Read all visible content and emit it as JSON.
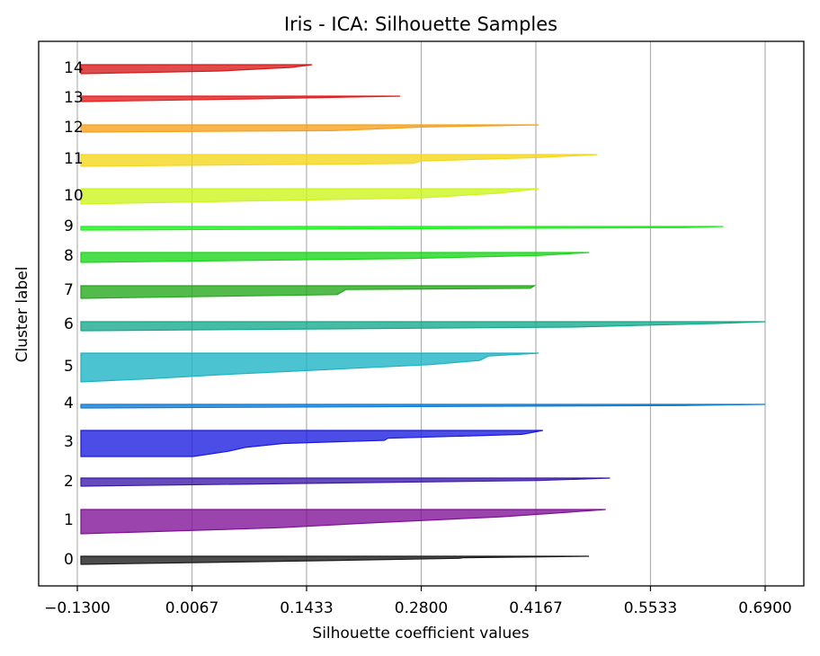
{
  "chart_data": {
    "type": "area",
    "title": "Iris - ICA: Silhouette Samples",
    "xlabel": "Silhouette coefficient values",
    "ylabel": "Cluster label",
    "xlim": [
      -0.13,
      0.69
    ],
    "xticks": [
      -0.13,
      0.0067,
      0.1433,
      0.28,
      0.4167,
      0.5533,
      0.69
    ],
    "xtick_labels": [
      "−0.1300",
      "0.0067",
      "0.1433",
      "0.2800",
      "0.4167",
      "0.5533",
      "0.6900"
    ],
    "grid": "vertical",
    "clusters": [
      {
        "label": "0",
        "color": "#1a1a1a",
        "profile": [
          [
            0.0,
            0.48
          ],
          [
            0.18,
            0.33
          ],
          [
            0.25,
            0.325
          ],
          [
            0.55,
            0.155
          ],
          [
            1.0,
            -0.126
          ]
        ]
      },
      {
        "label": "1",
        "color": "#800f96",
        "profile": [
          [
            0.0,
            0.5
          ],
          [
            0.1,
            0.46
          ],
          [
            0.3,
            0.375
          ],
          [
            0.55,
            0.22
          ],
          [
            0.75,
            0.11
          ],
          [
            1.0,
            -0.126
          ]
        ]
      },
      {
        "label": "2",
        "color": "#3b1aa6",
        "profile": [
          [
            0.0,
            0.505
          ],
          [
            0.3,
            0.42
          ],
          [
            1.0,
            -0.126
          ]
        ]
      },
      {
        "label": "3",
        "color": "#1a1ae0",
        "profile": [
          [
            0.0,
            0.425
          ],
          [
            0.15,
            0.4
          ],
          [
            0.3,
            0.24
          ],
          [
            0.38,
            0.236
          ],
          [
            0.5,
            0.115
          ],
          [
            0.65,
            0.07
          ],
          [
            0.8,
            0.05
          ],
          [
            1.0,
            0.008
          ]
        ]
      },
      {
        "label": "4",
        "color": "#0f7ad1",
        "profile": [
          [
            0.0,
            0.69
          ],
          [
            0.3,
            0.6
          ],
          [
            1.0,
            -0.126
          ]
        ]
      },
      {
        "label": "5",
        "color": "#1ab2c4",
        "profile": [
          [
            0.0,
            0.42
          ],
          [
            0.1,
            0.36
          ],
          [
            0.25,
            0.35
          ],
          [
            0.4,
            0.29
          ],
          [
            0.75,
            0.04
          ],
          [
            0.9,
            -0.05
          ],
          [
            1.0,
            -0.126
          ]
        ]
      },
      {
        "label": "6",
        "color": "#15a88a",
        "profile": [
          [
            0.0,
            0.69
          ],
          [
            0.2,
            0.63
          ],
          [
            0.6,
            0.46
          ],
          [
            1.0,
            -0.126
          ]
        ]
      },
      {
        "label": "7",
        "color": "#22a81a",
        "profile": [
          [
            0.0,
            0.415
          ],
          [
            0.2,
            0.41
          ],
          [
            0.3,
            0.19
          ],
          [
            0.7,
            0.18
          ],
          [
            1.0,
            -0.126
          ]
        ]
      },
      {
        "label": "8",
        "color": "#1ad61a",
        "profile": [
          [
            0.0,
            0.48
          ],
          [
            0.3,
            0.42
          ],
          [
            0.6,
            0.27
          ],
          [
            1.0,
            -0.126
          ]
        ]
      },
      {
        "label": "9",
        "color": "#1af01a",
        "profile": [
          [
            0.0,
            0.64
          ],
          [
            0.3,
            0.6
          ],
          [
            1.0,
            -0.126
          ]
        ]
      },
      {
        "label": "10",
        "color": "#ccf51a",
        "profile": [
          [
            0.0,
            0.42
          ],
          [
            0.15,
            0.395
          ],
          [
            0.3,
            0.37
          ],
          [
            0.6,
            0.28
          ],
          [
            1.0,
            -0.126
          ]
        ]
      },
      {
        "label": "11",
        "color": "#f5d61a",
        "profile": [
          [
            0.0,
            0.49
          ],
          [
            0.25,
            0.42
          ],
          [
            0.55,
            0.28
          ],
          [
            0.75,
            0.27
          ],
          [
            1.0,
            -0.126
          ]
        ]
      },
      {
        "label": "12",
        "color": "#f5a01a",
        "profile": [
          [
            0.0,
            0.42
          ],
          [
            0.3,
            0.28
          ],
          [
            0.8,
            0.175
          ],
          [
            1.0,
            -0.126
          ]
        ]
      },
      {
        "label": "13",
        "color": "#e61a1a",
        "profile": [
          [
            0.0,
            0.255
          ],
          [
            0.5,
            0.08
          ],
          [
            1.0,
            -0.126
          ]
        ]
      },
      {
        "label": "14",
        "color": "#d61a1a",
        "profile": [
          [
            0.0,
            0.15
          ],
          [
            0.3,
            0.125
          ],
          [
            0.7,
            0.04
          ],
          [
            1.0,
            -0.126
          ]
        ]
      }
    ]
  }
}
